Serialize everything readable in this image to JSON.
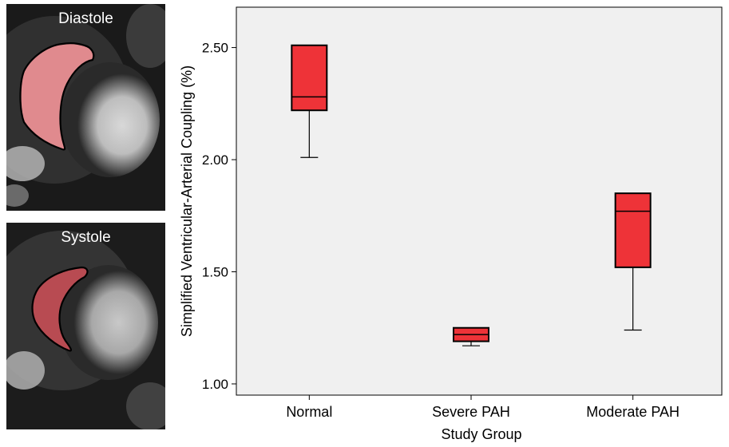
{
  "panels": [
    {
      "label": "Diastole",
      "highlight_color": "#e08a8e"
    },
    {
      "label": "Systole",
      "highlight_color": "#b84b52"
    }
  ],
  "chart_data": {
    "type": "box",
    "xlabel": "Study Group",
    "ylabel": "Simplified Ventricular-Arterial Coupling (%)",
    "ylim": [
      0.95,
      2.68
    ],
    "yticks": [
      "1.00",
      "1.50",
      "2.00",
      "2.50"
    ],
    "plot_background": "#f0f0f0",
    "box_color": "#ee3338",
    "categories": [
      "Normal",
      "Severe PAH",
      "Moderate PAH"
    ],
    "boxes": [
      {
        "name": "Normal",
        "min": 2.01,
        "q1": 2.22,
        "median": 2.28,
        "q3": 2.51,
        "max": 2.51
      },
      {
        "name": "Severe PAH",
        "min": 1.17,
        "q1": 1.19,
        "median": 1.22,
        "q3": 1.25,
        "max": 1.25
      },
      {
        "name": "Moderate PAH",
        "min": 1.24,
        "q1": 1.52,
        "median": 1.77,
        "q3": 1.85,
        "max": 1.85
      }
    ]
  }
}
